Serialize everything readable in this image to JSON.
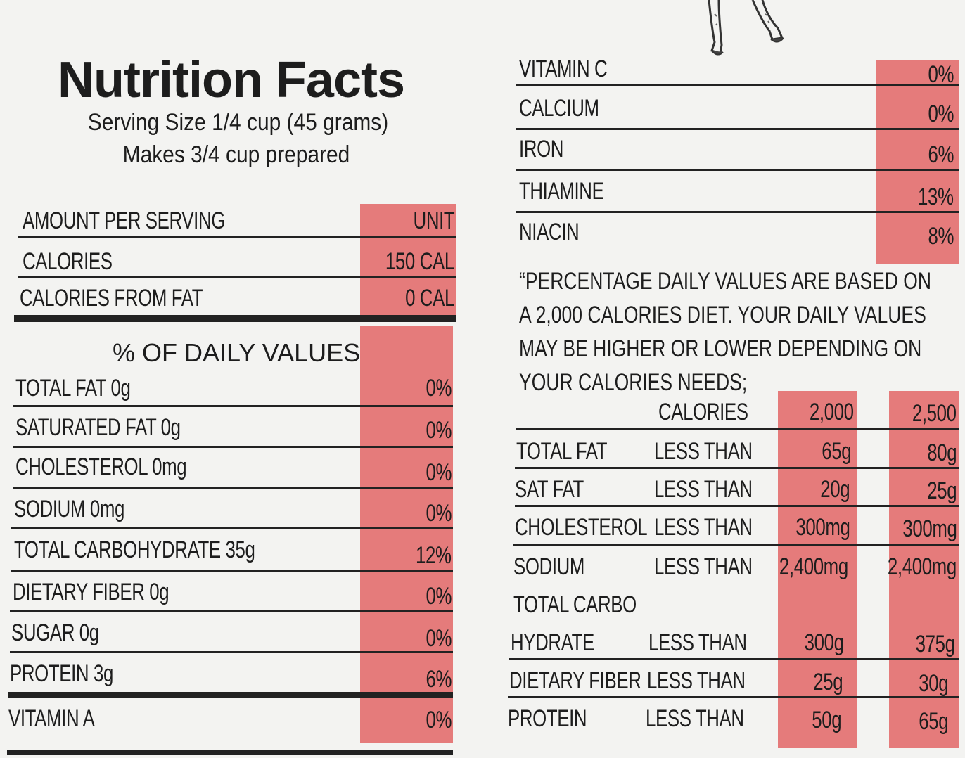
{
  "label": {
    "title": "Nutrition Facts",
    "serving_size": "Serving Size 1/4 cup (45 grams)",
    "makes": "Makes 3/4 cup prepared",
    "amount_header": {
      "label": "AMOUNT PER SERVING",
      "value": "UNIT"
    },
    "calories_rows": [
      {
        "label": "CALORIES",
        "value": "150 CAL"
      },
      {
        "label": "CALORIES FROM FAT",
        "value": "0 CAL"
      }
    ],
    "dv_heading": "% OF DAILY VALUES",
    "dv_rows": [
      {
        "label": "TOTAL FAT 0g",
        "value": "0%"
      },
      {
        "label": "SATURATED FAT 0g",
        "value": "0%"
      },
      {
        "label": "CHOLESTEROL 0mg",
        "value": "0%"
      },
      {
        "label": "SODIUM 0mg",
        "value": "0%"
      },
      {
        "label": "TOTAL CARBOHYDRATE 35g",
        "value": "12%"
      },
      {
        "label": "DIETARY FIBER 0g",
        "value": "0%"
      },
      {
        "label": "SUGAR 0g",
        "value": "0%"
      },
      {
        "label": "PROTEIN 3g",
        "value": "6%"
      },
      {
        "label": "VITAMIN A",
        "value": "0%"
      }
    ],
    "vitamin_rows": [
      {
        "label": "VITAMIN C",
        "value": "0%"
      },
      {
        "label": "CALCIUM",
        "value": "0%"
      },
      {
        "label": "IRON",
        "value": "6%"
      },
      {
        "label": "THIAMINE",
        "value": "13%"
      },
      {
        "label": "NIACIN",
        "value": "8%"
      }
    ],
    "footnote_lines": [
      "“PERCENTAGE DAILY VALUES ARE BASED ON",
      "A 2,000 CALORIES DIET. YOUR DAILY VALUES",
      "MAY BE HIGHER OR LOWER DEPENDING ON",
      "YOUR CALORIES NEEDS;"
    ],
    "reference_table": {
      "header": {
        "label": "CALORIES",
        "col1": "2,000",
        "col2": "2,500"
      },
      "rows": [
        {
          "nutrient": "TOTAL FAT",
          "qualifier": "LESS THAN",
          "col1": "65g",
          "col2": "80g"
        },
        {
          "nutrient": "SAT FAT",
          "qualifier": "LESS THAN",
          "col1": "20g",
          "col2": "25g"
        },
        {
          "nutrient": "CHOLESTEROL",
          "qualifier": "LESS THAN",
          "col1": "300mg",
          "col2": "300mg"
        },
        {
          "nutrient": "SODIUM",
          "qualifier": "LESS THAN",
          "col1": "2,400mg",
          "col2": "2,400mg"
        },
        {
          "nutrient": "TOTAL CARBO",
          "qualifier": "",
          "col1": "",
          "col2": ""
        },
        {
          "nutrient": "HYDRATE",
          "qualifier": "LESS THAN",
          "col1": "300g",
          "col2": "375g"
        },
        {
          "nutrient": "DIETARY FIBER",
          "qualifier": "LESS THAN",
          "col1": "25g",
          "col2": "30g"
        },
        {
          "nutrient": "PROTEIN",
          "qualifier": "LESS THAN",
          "col1": "50g",
          "col2": "65g"
        }
      ]
    }
  },
  "colors": {
    "highlight": "#e57b7b",
    "ink": "#1d1d1d",
    "paper": "#f3f3f1"
  }
}
